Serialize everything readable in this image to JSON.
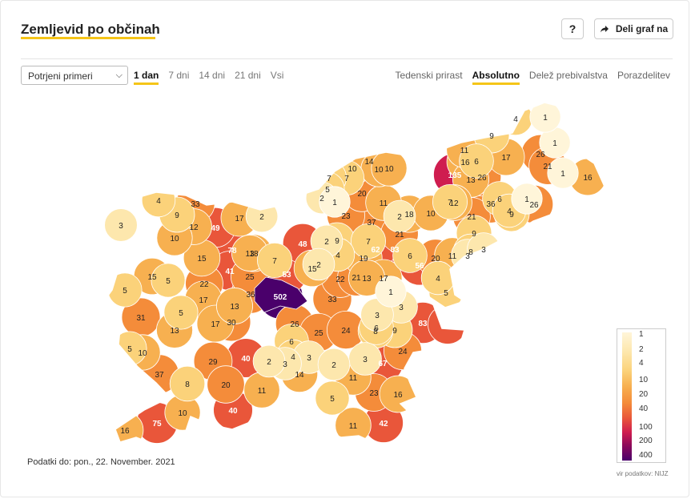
{
  "header": {
    "title": "Zemljevid po občinah",
    "help_label": "?",
    "share_label": "Deli graf na"
  },
  "controls": {
    "select_value": "Potrjeni primeri",
    "ranges": [
      "1 dan",
      "7 dni",
      "14 dni",
      "21 dni",
      "Vsi"
    ],
    "active_range": "1 dan",
    "modes": [
      "Tedenski prirast",
      "Absolutno",
      "Delež prebivalstva",
      "Porazdelitev"
    ],
    "active_mode": "Absolutno"
  },
  "legend": {
    "labels": [
      "1",
      "2",
      "4",
      "10",
      "20",
      "40",
      "100",
      "200",
      "400"
    ],
    "colors": [
      "#fff5d9",
      "#fde7ad",
      "#fbd27a",
      "#f7b050",
      "#f48c3a",
      "#e9563a",
      "#cf1d4f",
      "#8e0a5a",
      "#4a006b"
    ]
  },
  "footer": {
    "data_date": "Podatki do: pon., 22. November. 2021",
    "source": "vir podatkov: NIJZ"
  },
  "map_values": [
    {
      "label": "502",
      "value": 502
    },
    {
      "label": "135",
      "value": 135
    },
    {
      "label": "83",
      "value": 83
    },
    {
      "label": "83",
      "value": 83
    },
    {
      "label": "78",
      "value": 78
    },
    {
      "label": "75",
      "value": 75
    },
    {
      "label": "67",
      "value": 67
    },
    {
      "label": "62",
      "value": 62
    },
    {
      "label": "56",
      "value": 56
    },
    {
      "label": "53",
      "value": 53
    },
    {
      "label": "49",
      "value": 49
    },
    {
      "label": "48",
      "value": 48
    },
    {
      "label": "42",
      "value": 42
    },
    {
      "label": "41",
      "value": 41
    },
    {
      "label": "41",
      "value": 41
    },
    {
      "label": "40",
      "value": 40
    },
    {
      "label": "40",
      "value": 40
    },
    {
      "label": "37",
      "value": 37
    },
    {
      "label": "37",
      "value": 37
    },
    {
      "label": "36",
      "value": 36
    },
    {
      "label": "36",
      "value": 36
    },
    {
      "label": "33",
      "value": 33
    },
    {
      "label": "33",
      "value": 33
    },
    {
      "label": "31",
      "value": 31
    },
    {
      "label": "30",
      "value": 30
    },
    {
      "label": "29",
      "value": 29
    },
    {
      "label": "26",
      "value": 26
    },
    {
      "label": "26",
      "value": 26
    },
    {
      "label": "26",
      "value": 26
    },
    {
      "label": "26",
      "value": 26
    },
    {
      "label": "25",
      "value": 25
    },
    {
      "label": "25",
      "value": 25
    },
    {
      "label": "24",
      "value": 24
    },
    {
      "label": "24",
      "value": 24
    },
    {
      "label": "23",
      "value": 23
    },
    {
      "label": "23",
      "value": 23
    },
    {
      "label": "22",
      "value": 22
    },
    {
      "label": "22",
      "value": 22
    },
    {
      "label": "21",
      "value": 21
    },
    {
      "label": "21",
      "value": 21
    },
    {
      "label": "21",
      "value": 21
    },
    {
      "label": "21",
      "value": 21
    },
    {
      "label": "20",
      "value": 20
    },
    {
      "label": "20",
      "value": 20
    },
    {
      "label": "20",
      "value": 20
    },
    {
      "label": "19",
      "value": 19
    },
    {
      "label": "18",
      "value": 18
    },
    {
      "label": "18",
      "value": 18
    },
    {
      "label": "17",
      "value": 17
    },
    {
      "label": "17",
      "value": 17
    },
    {
      "label": "17",
      "value": 17
    },
    {
      "label": "17",
      "value": 17
    },
    {
      "label": "17",
      "value": 17
    },
    {
      "label": "16",
      "value": 16
    },
    {
      "label": "16",
      "value": 16
    },
    {
      "label": "16",
      "value": 16
    },
    {
      "label": "16",
      "value": 16
    },
    {
      "label": "15",
      "value": 15
    },
    {
      "label": "15",
      "value": 15
    },
    {
      "label": "15",
      "value": 15
    },
    {
      "label": "14",
      "value": 14
    },
    {
      "label": "14",
      "value": 14
    },
    {
      "label": "13",
      "value": 13
    },
    {
      "label": "13",
      "value": 13
    },
    {
      "label": "13",
      "value": 13
    },
    {
      "label": "13",
      "value": 13
    },
    {
      "label": "13",
      "value": 13
    },
    {
      "label": "12",
      "value": 12
    },
    {
      "label": "12",
      "value": 12
    },
    {
      "label": "11",
      "value": 11
    },
    {
      "label": "11",
      "value": 11
    },
    {
      "label": "11",
      "value": 11
    },
    {
      "label": "11",
      "value": 11
    },
    {
      "label": "11",
      "value": 11
    },
    {
      "label": "11",
      "value": 11
    },
    {
      "label": "10",
      "value": 10
    },
    {
      "label": "10",
      "value": 10
    },
    {
      "label": "10",
      "value": 10
    },
    {
      "label": "10",
      "value": 10
    },
    {
      "label": "10",
      "value": 10
    },
    {
      "label": "10",
      "value": 10
    },
    {
      "label": "10",
      "value": 10
    },
    {
      "label": "9",
      "value": 9
    },
    {
      "label": "9",
      "value": 9
    },
    {
      "label": "9",
      "value": 9
    },
    {
      "label": "9",
      "value": 9
    },
    {
      "label": "9",
      "value": 9
    },
    {
      "label": "9",
      "value": 9
    },
    {
      "label": "8",
      "value": 8
    },
    {
      "label": "8",
      "value": 8
    },
    {
      "label": "8",
      "value": 8
    },
    {
      "label": "7",
      "value": 7
    },
    {
      "label": "7",
      "value": 7
    },
    {
      "label": "7",
      "value": 7
    },
    {
      "label": "7",
      "value": 7
    },
    {
      "label": "7",
      "value": 7
    },
    {
      "label": "6",
      "value": 6
    },
    {
      "label": "6",
      "value": 6
    },
    {
      "label": "6",
      "value": 6
    },
    {
      "label": "6",
      "value": 6
    },
    {
      "label": "6",
      "value": 6
    },
    {
      "label": "5",
      "value": 5
    },
    {
      "label": "5",
      "value": 5
    },
    {
      "label": "5",
      "value": 5
    },
    {
      "label": "5",
      "value": 5
    },
    {
      "label": "5",
      "value": 5
    },
    {
      "label": "5",
      "value": 5
    },
    {
      "label": "5",
      "value": 5
    },
    {
      "label": "4",
      "value": 4
    },
    {
      "label": "4",
      "value": 4
    },
    {
      "label": "4",
      "value": 4
    },
    {
      "label": "4",
      "value": 4
    },
    {
      "label": "4",
      "value": 4
    },
    {
      "label": "4",
      "value": 4
    },
    {
      "label": "3",
      "value": 3
    },
    {
      "label": "3",
      "value": 3
    },
    {
      "label": "3",
      "value": 3
    },
    {
      "label": "3",
      "value": 3
    },
    {
      "label": "3",
      "value": 3
    },
    {
      "label": "3",
      "value": 3
    },
    {
      "label": "3",
      "value": 3
    },
    {
      "label": "3",
      "value": 3
    },
    {
      "label": "2",
      "value": 2
    },
    {
      "label": "2",
      "value": 2
    },
    {
      "label": "2",
      "value": 2
    },
    {
      "label": "2",
      "value": 2
    },
    {
      "label": "2",
      "value": 2
    },
    {
      "label": "2",
      "value": 2
    },
    {
      "label": "2",
      "value": 2
    },
    {
      "label": "1",
      "value": 1
    },
    {
      "label": "1",
      "value": 1
    },
    {
      "label": "1",
      "value": 1
    },
    {
      "label": "1",
      "value": 1
    },
    {
      "label": "1",
      "value": 1
    },
    {
      "label": "1",
      "value": 1
    }
  ]
}
